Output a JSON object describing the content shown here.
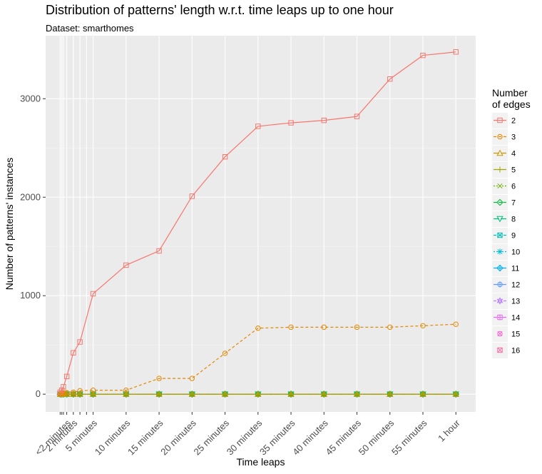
{
  "chart_data": {
    "type": "line",
    "title": "Distribution of patterns' length w.r.t. time leaps up to one hour",
    "subtitle": "Dataset: smarthomes",
    "xlabel": "Time leaps",
    "ylabel": "Number of patterns' instances",
    "x_units": "minutes",
    "x_tick_labels": [
      {
        "value": 1,
        "label": "<2 minutes"
      },
      {
        "value": 2,
        "label": "2 minutes"
      },
      {
        "value": 5,
        "label": "5 minutes"
      },
      {
        "value": 10,
        "label": "10 minutes"
      },
      {
        "value": 15,
        "label": "15 minutes"
      },
      {
        "value": 20,
        "label": "20 minutes"
      },
      {
        "value": 25,
        "label": "25 minutes"
      },
      {
        "value": 30,
        "label": "30 minutes"
      },
      {
        "value": 35,
        "label": "35 minutes"
      },
      {
        "value": 40,
        "label": "40 minutes"
      },
      {
        "value": 45,
        "label": "45 minutes"
      },
      {
        "value": 50,
        "label": "50 minutes"
      },
      {
        "value": 55,
        "label": "55 minutes"
      },
      {
        "value": 60,
        "label": "1 hour"
      }
    ],
    "x_minor_ticks": [
      0,
      0.25,
      0.5,
      1,
      2,
      3,
      4,
      5
    ],
    "y_ticks": [
      0,
      1000,
      2000,
      3000
    ],
    "xlim": [
      -2.2,
      63
    ],
    "ylim": [
      -180,
      3640
    ],
    "grid": true,
    "legend": {
      "title": "Number\nof edges",
      "position": "right"
    },
    "series": [
      {
        "name": "2",
        "color": "#F8766D",
        "dash": "",
        "shape": "square",
        "points": [
          [
            0,
            20
          ],
          [
            0.25,
            40
          ],
          [
            0.5,
            75
          ],
          [
            1,
            180
          ],
          [
            2,
            420
          ],
          [
            3,
            530
          ],
          [
            5,
            1020
          ],
          [
            10,
            1310
          ],
          [
            15,
            1455
          ],
          [
            20,
            2010
          ],
          [
            25,
            2410
          ],
          [
            30,
            2720
          ],
          [
            35,
            2755
          ],
          [
            40,
            2780
          ],
          [
            45,
            2820
          ],
          [
            50,
            3200
          ],
          [
            55,
            3440
          ],
          [
            60,
            3475
          ]
        ]
      },
      {
        "name": "3",
        "color": "#E58700",
        "dash": "4,3",
        "shape": "circle",
        "points": [
          [
            0,
            5
          ],
          [
            0.25,
            8
          ],
          [
            0.5,
            12
          ],
          [
            1,
            15
          ],
          [
            2,
            20
          ],
          [
            3,
            35
          ],
          [
            5,
            40
          ],
          [
            10,
            40
          ],
          [
            15,
            160
          ],
          [
            20,
            160
          ],
          [
            25,
            415
          ],
          [
            30,
            670
          ],
          [
            35,
            680
          ],
          [
            40,
            680
          ],
          [
            45,
            680
          ],
          [
            50,
            680
          ],
          [
            55,
            695
          ],
          [
            60,
            710
          ]
        ]
      },
      {
        "name": "4",
        "color": "#C99800",
        "dash": "8,3",
        "shape": "triangle",
        "points": [
          [
            0,
            0
          ],
          [
            0.25,
            0
          ],
          [
            0.5,
            0
          ],
          [
            1,
            0
          ],
          [
            2,
            0
          ],
          [
            3,
            0
          ],
          [
            5,
            0
          ],
          [
            10,
            0
          ],
          [
            15,
            0
          ],
          [
            20,
            0
          ],
          [
            25,
            0
          ],
          [
            30,
            0
          ],
          [
            35,
            0
          ],
          [
            40,
            0
          ],
          [
            45,
            0
          ],
          [
            50,
            0
          ],
          [
            55,
            0
          ],
          [
            60,
            0
          ]
        ]
      },
      {
        "name": "5",
        "color": "#A3A500",
        "dash": "",
        "shape": "plus",
        "points": [
          [
            0,
            0
          ],
          [
            0.25,
            0
          ],
          [
            0.5,
            0
          ],
          [
            1,
            0
          ],
          [
            2,
            0
          ],
          [
            3,
            0
          ],
          [
            5,
            0
          ],
          [
            10,
            0
          ],
          [
            15,
            0
          ],
          [
            20,
            0
          ],
          [
            25,
            0
          ],
          [
            30,
            0
          ],
          [
            35,
            0
          ],
          [
            40,
            0
          ],
          [
            45,
            0
          ],
          [
            50,
            0
          ],
          [
            55,
            0
          ],
          [
            60,
            0
          ]
        ]
      },
      {
        "name": "6",
        "color": "#6BB100",
        "dash": "2,2",
        "shape": "cross",
        "points": [
          [
            0,
            0
          ],
          [
            0.25,
            0
          ],
          [
            0.5,
            0
          ],
          [
            1,
            0
          ],
          [
            2,
            0
          ],
          [
            3,
            0
          ],
          [
            5,
            0
          ],
          [
            10,
            0
          ],
          [
            15,
            0
          ],
          [
            20,
            0
          ],
          [
            25,
            0
          ],
          [
            30,
            0
          ],
          [
            35,
            0
          ],
          [
            40,
            0
          ],
          [
            45,
            0
          ],
          [
            50,
            0
          ],
          [
            55,
            0
          ],
          [
            60,
            0
          ]
        ]
      },
      {
        "name": "7",
        "color": "#00BA38",
        "dash": "5,2",
        "shape": "diamond",
        "points": [
          [
            0,
            0
          ],
          [
            0.25,
            0
          ],
          [
            0.5,
            0
          ],
          [
            1,
            0
          ],
          [
            2,
            0
          ],
          [
            3,
            0
          ],
          [
            5,
            0
          ],
          [
            10,
            0
          ],
          [
            15,
            0
          ],
          [
            20,
            0
          ],
          [
            25,
            0
          ],
          [
            30,
            0
          ],
          [
            35,
            0
          ],
          [
            40,
            0
          ],
          [
            45,
            0
          ],
          [
            50,
            0
          ],
          [
            55,
            0
          ],
          [
            60,
            0
          ]
        ]
      },
      {
        "name": "8",
        "color": "#00BF7D",
        "dash": "8,2",
        "shape": "triangle-down",
        "points": [
          [
            0,
            0
          ],
          [
            0.25,
            0
          ],
          [
            0.5,
            0
          ],
          [
            1,
            0
          ],
          [
            2,
            0
          ],
          [
            3,
            0
          ],
          [
            5,
            0
          ],
          [
            10,
            0
          ],
          [
            15,
            0
          ],
          [
            20,
            0
          ],
          [
            25,
            0
          ],
          [
            30,
            0
          ],
          [
            35,
            0
          ],
          [
            40,
            0
          ],
          [
            45,
            0
          ],
          [
            50,
            0
          ],
          [
            55,
            0
          ],
          [
            60,
            0
          ]
        ]
      },
      {
        "name": "9",
        "color": "#00C0B8",
        "dash": "4,3",
        "shape": "square-cross",
        "points": [
          [
            0,
            0
          ],
          [
            0.25,
            0
          ],
          [
            0.5,
            0
          ],
          [
            1,
            0
          ],
          [
            2,
            0
          ],
          [
            3,
            0
          ],
          [
            5,
            0
          ],
          [
            10,
            0
          ],
          [
            15,
            0
          ],
          [
            20,
            0
          ],
          [
            25,
            0
          ],
          [
            30,
            0
          ],
          [
            35,
            0
          ],
          [
            40,
            0
          ],
          [
            45,
            0
          ],
          [
            50,
            0
          ],
          [
            55,
            0
          ],
          [
            60,
            0
          ]
        ]
      },
      {
        "name": "10",
        "color": "#00BCD8",
        "dash": "2,2",
        "shape": "asterisk",
        "points": [
          [
            0,
            0
          ],
          [
            0.25,
            0
          ],
          [
            0.5,
            0
          ],
          [
            1,
            0
          ],
          [
            2,
            0
          ],
          [
            3,
            0
          ],
          [
            5,
            0
          ],
          [
            10,
            0
          ],
          [
            15,
            0
          ],
          [
            20,
            0
          ],
          [
            25,
            0
          ],
          [
            30,
            0
          ],
          [
            35,
            0
          ],
          [
            40,
            0
          ],
          [
            45,
            0
          ],
          [
            50,
            0
          ],
          [
            55,
            0
          ],
          [
            60,
            0
          ]
        ]
      },
      {
        "name": "11",
        "color": "#00B0F6",
        "dash": "",
        "shape": "diamond-plus",
        "points": [
          [
            0,
            0
          ],
          [
            0.25,
            0
          ],
          [
            0.5,
            0
          ],
          [
            1,
            0
          ],
          [
            2,
            0
          ],
          [
            3,
            0
          ],
          [
            5,
            0
          ],
          [
            10,
            0
          ],
          [
            15,
            0
          ],
          [
            20,
            0
          ],
          [
            25,
            0
          ],
          [
            30,
            0
          ],
          [
            35,
            0
          ],
          [
            40,
            0
          ],
          [
            45,
            0
          ],
          [
            50,
            0
          ],
          [
            55,
            0
          ],
          [
            60,
            0
          ]
        ]
      },
      {
        "name": "12",
        "color": "#619CFF",
        "dash": "",
        "shape": "circle-plus",
        "points": [
          [
            0,
            0
          ],
          [
            0.25,
            0
          ],
          [
            0.5,
            0
          ],
          [
            1,
            0
          ],
          [
            2,
            0
          ],
          [
            3,
            0
          ],
          [
            5,
            0
          ],
          [
            10,
            0
          ],
          [
            15,
            0
          ],
          [
            20,
            0
          ],
          [
            25,
            0
          ],
          [
            30,
            0
          ],
          [
            35,
            0
          ],
          [
            40,
            0
          ],
          [
            45,
            0
          ],
          [
            50,
            0
          ],
          [
            55,
            0
          ],
          [
            60,
            0
          ]
        ]
      },
      {
        "name": "13",
        "color": "#B983FF",
        "dash": "4,3",
        "shape": "star",
        "points": [
          [
            0,
            0
          ],
          [
            0.25,
            0
          ],
          [
            0.5,
            0
          ],
          [
            1,
            0
          ],
          [
            2,
            0
          ],
          [
            3,
            0
          ],
          [
            5,
            0
          ],
          [
            10,
            0
          ],
          [
            15,
            0
          ],
          [
            20,
            0
          ],
          [
            25,
            0
          ],
          [
            30,
            0
          ],
          [
            35,
            0
          ],
          [
            40,
            0
          ],
          [
            45,
            0
          ],
          [
            50,
            0
          ],
          [
            55,
            0
          ],
          [
            60,
            0
          ]
        ]
      },
      {
        "name": "14",
        "color": "#E76BF3",
        "dash": "",
        "shape": "square-plus",
        "points": [
          [
            0,
            0
          ],
          [
            0.25,
            0
          ],
          [
            0.5,
            0
          ],
          [
            1,
            0
          ],
          [
            2,
            0
          ],
          [
            3,
            0
          ],
          [
            5,
            0
          ],
          [
            10,
            0
          ],
          [
            15,
            0
          ],
          [
            20,
            0
          ],
          [
            25,
            0
          ],
          [
            30,
            0
          ],
          [
            35,
            0
          ],
          [
            40,
            0
          ],
          [
            45,
            0
          ],
          [
            50,
            0
          ],
          [
            55,
            0
          ],
          [
            60,
            0
          ]
        ]
      },
      {
        "name": "15",
        "color": "#FD61D1",
        "dash": "none",
        "shape": "circle-cross",
        "points": [
          [
            0,
            0
          ],
          [
            0.25,
            0
          ],
          [
            0.5,
            0
          ],
          [
            1,
            0
          ],
          [
            2,
            0
          ],
          [
            3,
            0
          ],
          [
            5,
            0
          ],
          [
            10,
            0
          ],
          [
            15,
            0
          ],
          [
            20,
            0
          ],
          [
            25,
            0
          ],
          [
            30,
            0
          ],
          [
            35,
            0
          ],
          [
            40,
            0
          ],
          [
            45,
            0
          ],
          [
            50,
            0
          ],
          [
            55,
            0
          ],
          [
            60,
            0
          ]
        ]
      },
      {
        "name": "16",
        "color": "#FF67A4",
        "dash": "none",
        "shape": "square-x",
        "points": [
          [
            0,
            0
          ],
          [
            0.25,
            0
          ],
          [
            0.5,
            0
          ],
          [
            1,
            0
          ],
          [
            2,
            0
          ],
          [
            3,
            0
          ],
          [
            5,
            0
          ],
          [
            10,
            0
          ],
          [
            15,
            0
          ],
          [
            20,
            0
          ],
          [
            25,
            0
          ],
          [
            30,
            0
          ],
          [
            35,
            0
          ],
          [
            40,
            0
          ],
          [
            45,
            0
          ],
          [
            50,
            0
          ],
          [
            55,
            0
          ],
          [
            60,
            0
          ]
        ]
      }
    ]
  }
}
